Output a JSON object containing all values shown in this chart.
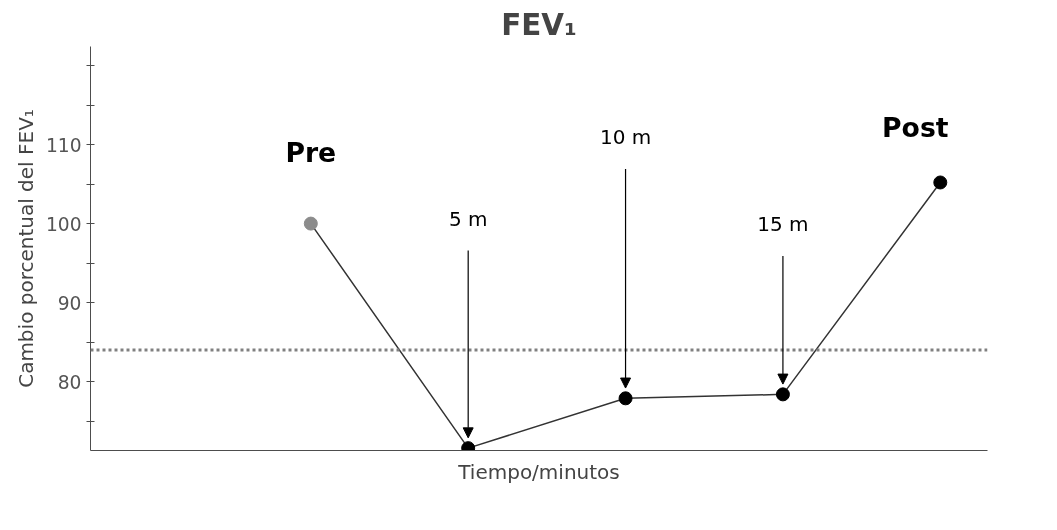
{
  "chart_data": {
    "type": "line",
    "title": "FEV₁",
    "xlabel": "Tiempo/minutos",
    "ylabel": "Cambio porcentual del FEV₁",
    "tick_labels": "y",
    "grid": false,
    "categories": [
      null,
      null,
      null,
      null,
      null
    ],
    "ylim": [
      71.3,
      122.4
    ],
    "yticks": [
      80,
      90,
      100,
      110
    ],
    "series": [
      {
        "color": "#333333",
        "colors": [
          "#8c8c8c",
          "#000000",
          "#000000",
          "#000000",
          "#000000"
        ],
        "marker": "circle",
        "line_style": "solid",
        "values": [
          100,
          71.6,
          77.9,
          78.4,
          105.2
        ]
      }
    ],
    "ref_lines": [
      {
        "axis": "y",
        "value": 84,
        "color": "#808080",
        "line_style": "dotted"
      }
    ],
    "annotations": [
      "Pre",
      "5 m",
      "10 m",
      "15 m",
      "Post"
    ]
  }
}
